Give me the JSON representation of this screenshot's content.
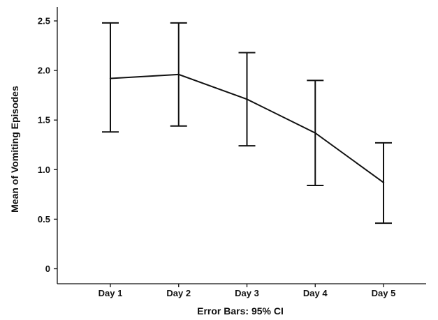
{
  "chart_data": {
    "type": "line",
    "categories": [
      "Day 1",
      "Day 2",
      "Day 3",
      "Day 4",
      "Day 5"
    ],
    "series": [
      {
        "values": [
          1.92,
          1.96,
          1.71,
          1.37,
          0.87
        ],
        "ci_lower": [
          1.38,
          1.44,
          1.24,
          0.84,
          0.46
        ],
        "ci_upper": [
          2.48,
          2.48,
          2.18,
          1.9,
          1.27
        ]
      }
    ],
    "xlabel": "Error Bars: 95% CI",
    "ylabel": "Mean of Vomiting Episodes",
    "ylim": [
      0,
      2.5
    ],
    "yticks": [
      0,
      0.5,
      1.0,
      1.5,
      2.0,
      2.5
    ],
    "ytick_labels": [
      "0",
      "0.5",
      "1.0",
      "1.5",
      "2.0",
      "2.5"
    ],
    "grid": false,
    "legend": "none",
    "line_color": "#111111"
  }
}
